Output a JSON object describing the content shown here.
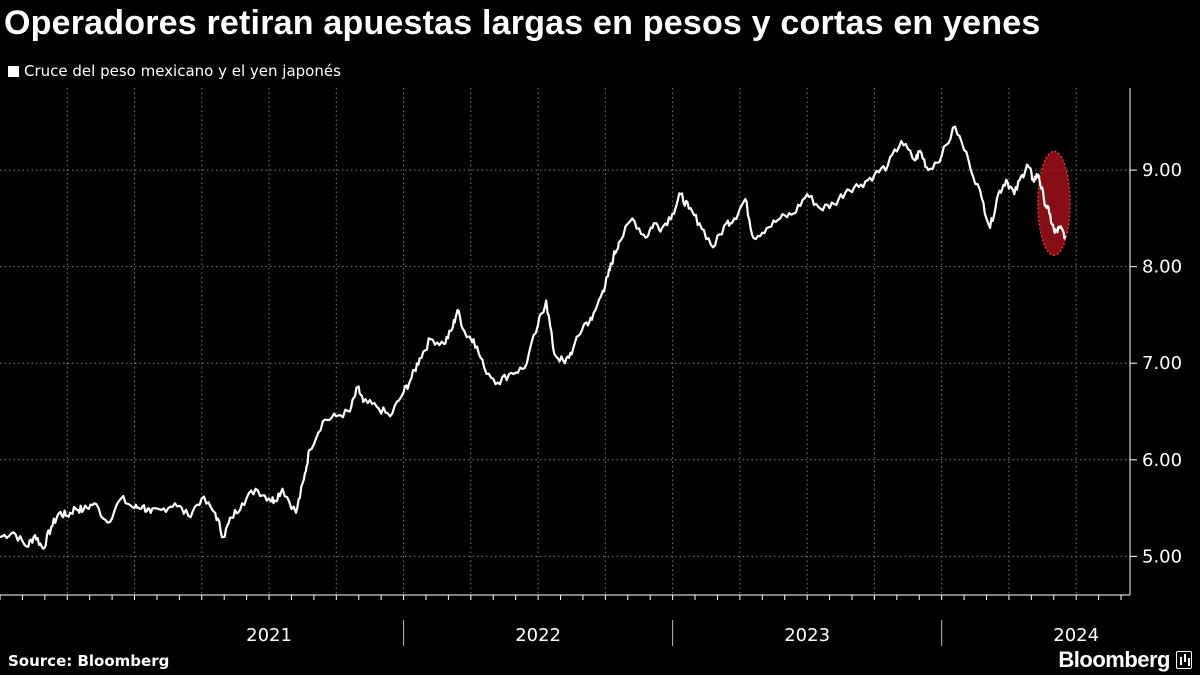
{
  "header": {
    "title": "Operadores retiran apuestas largas en pesos y cortas en yenes"
  },
  "footer": {
    "source": "Source: Bloomberg",
    "brand": "Bloomberg"
  },
  "colors": {
    "background": "#000000",
    "line": "#ffffff",
    "highlight": "#b3131b"
  },
  "chart_data": {
    "type": "line",
    "title": "Operadores retiran apuestas largas en pesos y cortas en yenes",
    "xlabel": "",
    "ylabel": "",
    "legend": [
      "Cruce del peso mexicano y el yen japonés"
    ],
    "legend_position": "top-left",
    "ylim": [
      4.6,
      9.85
    ],
    "yticks": [
      5.0,
      6.0,
      7.0,
      8.0,
      9.0
    ],
    "ytick_labels": [
      "5.00",
      "6.00",
      "7.00",
      "8.00",
      "9.00"
    ],
    "xlim": [
      2020.5,
      2024.7
    ],
    "year_labels": [
      "2021",
      "2022",
      "2023",
      "2024"
    ],
    "grid": true,
    "annotation": "highlighted recent drop (red ellipse)",
    "series": [
      {
        "name": "Cruce del peso mexicano y el yen japonés",
        "x": [
          2020.5,
          2020.55,
          2020.6,
          2020.63,
          2020.66,
          2020.69,
          2020.72,
          2020.75,
          2020.78,
          2020.81,
          2020.85,
          2020.9,
          2020.95,
          2021.0,
          2021.03,
          2021.06,
          2021.1,
          2021.15,
          2021.2,
          2021.25,
          2021.3,
          2021.33,
          2021.36,
          2021.4,
          2021.45,
          2021.5,
          2021.52,
          2021.55,
          2021.6,
          2021.63,
          2021.65,
          2021.7,
          2021.75,
          2021.8,
          2021.83,
          2021.85,
          2021.9,
          2021.95,
          2022.0,
          2022.03,
          2022.06,
          2022.1,
          2022.15,
          2022.18,
          2022.2,
          2022.23,
          2022.26,
          2022.3,
          2022.35,
          2022.4,
          2022.45,
          2022.5,
          2022.53,
          2022.56,
          2022.6,
          2022.63,
          2022.67,
          2022.7,
          2022.74,
          2022.76,
          2022.78,
          2022.8,
          2022.85,
          2022.9,
          2022.93,
          2022.96,
          2023.0,
          2023.03,
          2023.06,
          2023.1,
          2023.15,
          2023.2,
          2023.23,
          2023.27,
          2023.3,
          2023.35,
          2023.4,
          2023.45,
          2023.5,
          2023.55,
          2023.6,
          2023.65,
          2023.7,
          2023.75,
          2023.8,
          2023.85,
          2023.9,
          2023.92,
          2023.95,
          2024.0,
          2024.05,
          2024.1,
          2024.15,
          2024.18,
          2024.21,
          2024.24,
          2024.27,
          2024.3,
          2024.32,
          2024.34,
          2024.36,
          2024.38,
          2024.4,
          2024.42,
          2024.44,
          2024.46
        ],
        "values": [
          5.2,
          5.25,
          5.1,
          5.22,
          5.08,
          5.3,
          5.45,
          5.42,
          5.5,
          5.48,
          5.55,
          5.35,
          5.6,
          5.5,
          5.52,
          5.45,
          5.48,
          5.55,
          5.42,
          5.6,
          5.45,
          5.2,
          5.4,
          5.55,
          5.7,
          5.6,
          5.58,
          5.7,
          5.45,
          5.8,
          6.1,
          6.4,
          6.45,
          6.5,
          6.75,
          6.6,
          6.55,
          6.45,
          6.7,
          6.85,
          7.05,
          7.25,
          7.2,
          7.35,
          7.55,
          7.3,
          7.25,
          6.95,
          6.8,
          6.9,
          6.95,
          7.4,
          7.65,
          7.1,
          7.0,
          7.15,
          7.4,
          7.45,
          7.75,
          7.9,
          8.1,
          8.25,
          8.5,
          8.3,
          8.45,
          8.4,
          8.55,
          8.75,
          8.6,
          8.45,
          8.2,
          8.45,
          8.5,
          8.7,
          8.3,
          8.4,
          8.5,
          8.55,
          8.75,
          8.6,
          8.65,
          8.8,
          8.85,
          8.95,
          9.05,
          9.3,
          9.1,
          9.2,
          9.0,
          9.15,
          9.45,
          9.1,
          8.7,
          8.4,
          8.75,
          8.9,
          8.75,
          8.95,
          9.05,
          8.9,
          8.95,
          8.7,
          8.55,
          8.35,
          8.4,
          8.32
        ]
      }
    ]
  }
}
